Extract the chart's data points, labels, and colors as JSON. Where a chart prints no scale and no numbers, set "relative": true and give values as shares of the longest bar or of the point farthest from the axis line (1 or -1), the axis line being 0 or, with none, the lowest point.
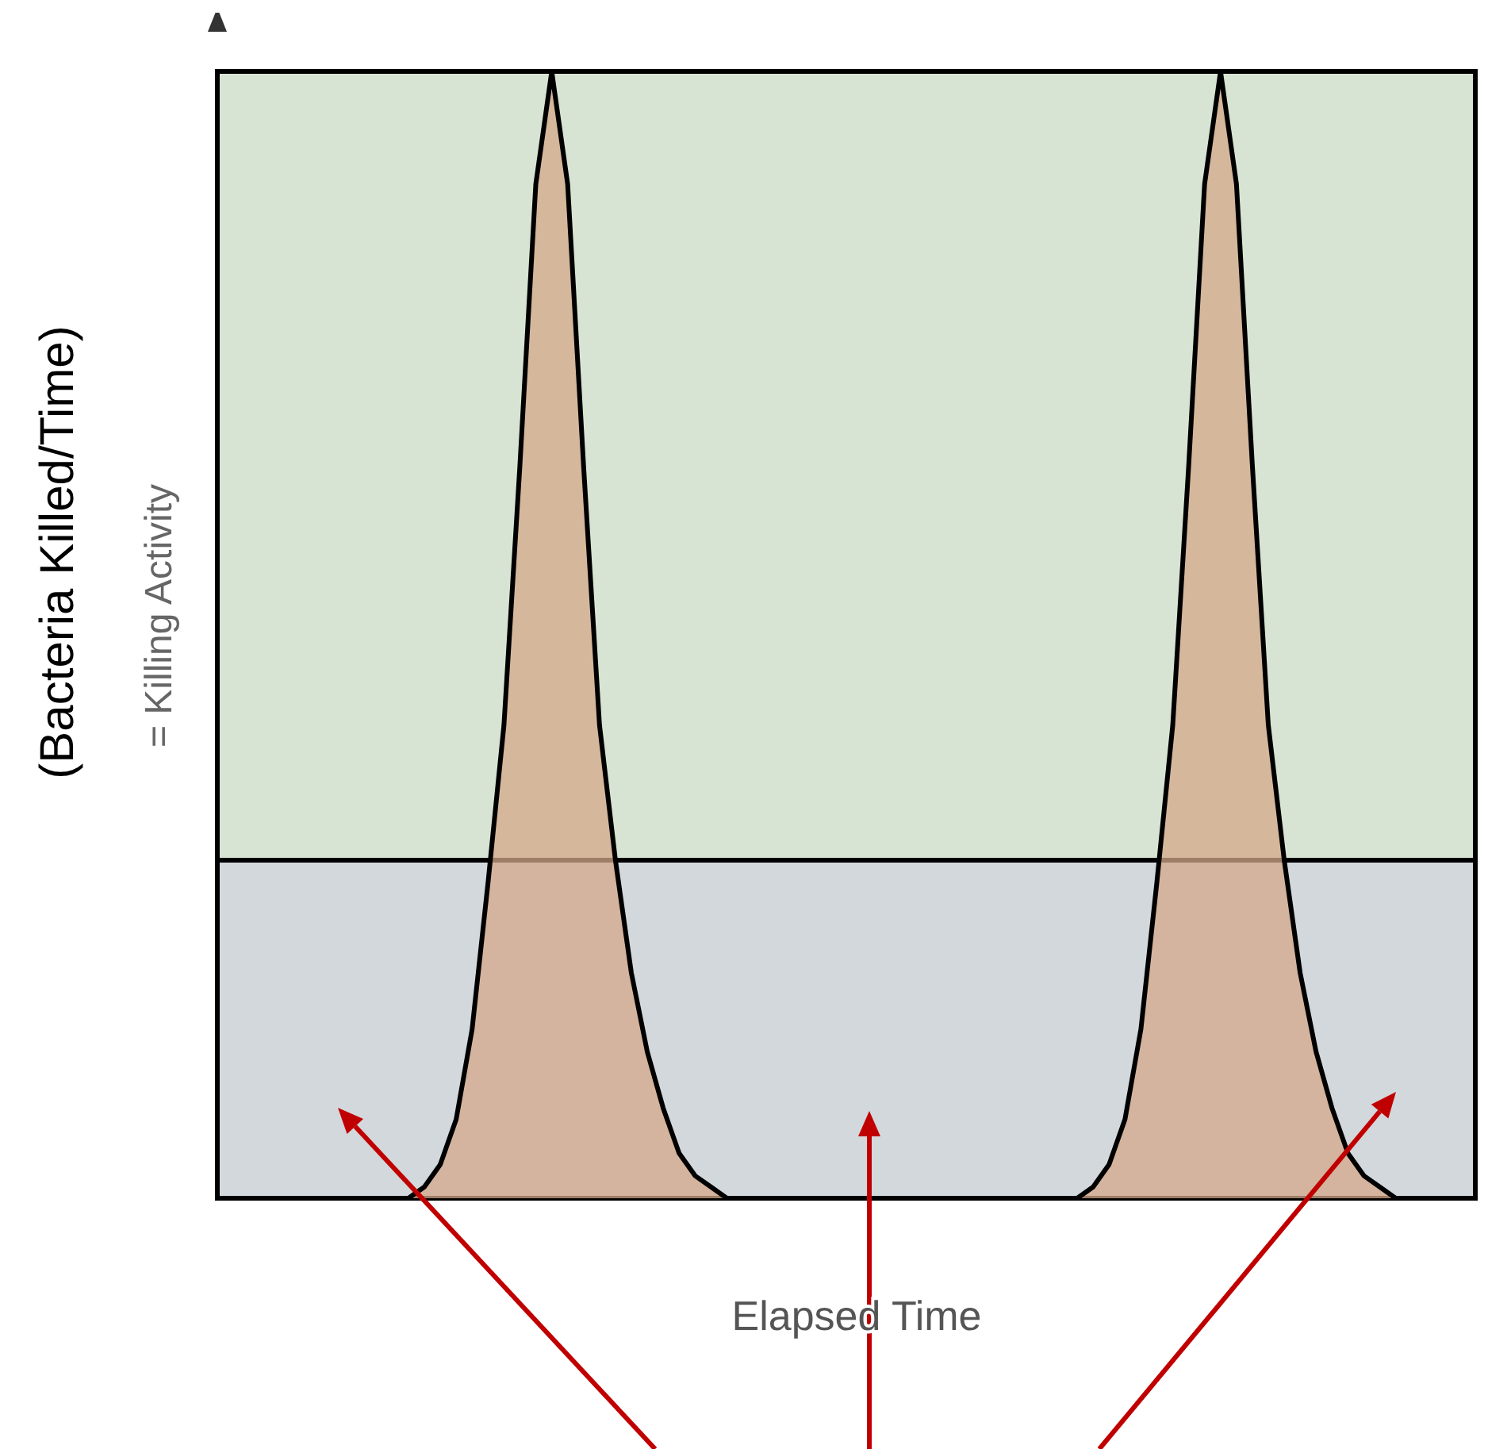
{
  "chart_data": {
    "type": "area",
    "relative": true,
    "xlabel": "Elapsed Time",
    "ylabel": "= Killing Activity",
    "annotations": [
      "(Bacteria Killed/Time)"
    ],
    "categories": [
      null,
      null,
      null,
      null,
      null,
      null,
      null,
      null,
      null,
      null,
      null,
      null,
      null,
      null,
      null,
      null,
      null,
      null,
      null,
      null,
      null,
      null,
      null,
      null,
      null,
      null,
      null,
      null,
      null,
      null,
      null,
      null,
      null,
      null,
      null,
      null,
      null,
      null,
      null,
      null,
      null,
      null,
      null,
      null,
      null,
      null,
      null,
      null,
      null,
      null,
      null,
      null,
      null,
      null,
      null,
      null,
      null,
      null,
      null,
      null,
      null,
      null,
      null,
      null,
      null,
      null,
      null,
      null,
      null,
      null,
      null,
      null,
      null,
      null,
      null,
      null,
      null,
      null,
      null,
      null
    ],
    "series": [
      {
        "color": "#d4a88a",
        "values": [
          0,
          0,
          0,
          0,
          0,
          0,
          0,
          0,
          0,
          0,
          0,
          0,
          0,
          0.01,
          0.03,
          0.07,
          0.15,
          0.28,
          0.42,
          0.65,
          0.9,
          1,
          0.9,
          0.65,
          0.42,
          0.3,
          0.2,
          0.13,
          0.08,
          0.04,
          0.02,
          0.01,
          0,
          0,
          0,
          0,
          0,
          0,
          0,
          0,
          0,
          0,
          0,
          0,
          0,
          0,
          0,
          0,
          0,
          0,
          0,
          0,
          0,
          0,
          0,
          0.01,
          0.03,
          0.07,
          0.15,
          0.28,
          0.42,
          0.65,
          0.9,
          1,
          0.9,
          0.65,
          0.42,
          0.3,
          0.2,
          0.13,
          0.08,
          0.04,
          0.02,
          0.01,
          0,
          0,
          0,
          0,
          0,
          0
        ]
      }
    ],
    "bands": [
      {
        "axis": "y",
        "from": 0,
        "to": 0.3,
        "color": "#d3d8dc"
      },
      {
        "axis": "y",
        "from": 0.3,
        "to": 1,
        "color": "#d8e4d3"
      }
    ]
  }
}
